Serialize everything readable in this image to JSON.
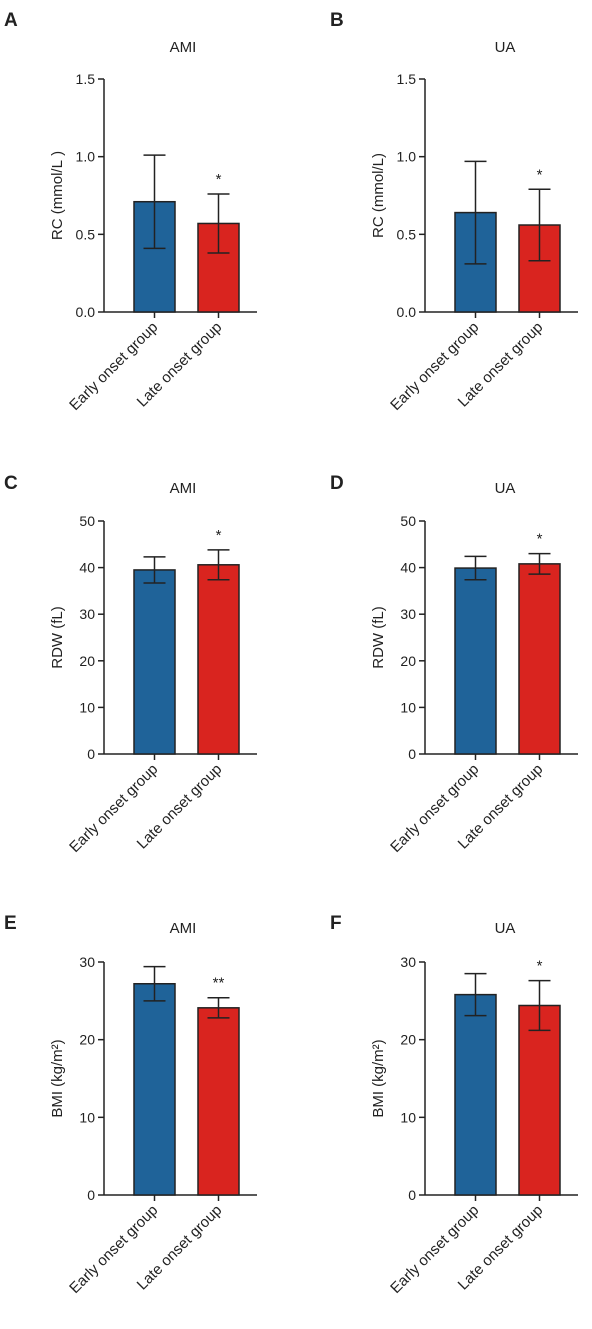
{
  "colors": {
    "early": "#1f6399",
    "late": "#d9241f",
    "axis": "#222222"
  },
  "chart_data": [
    {
      "letter": "A",
      "type": "bar",
      "title": "AMI",
      "ylabel": "RC (mmol/L )",
      "categories": [
        "Early onset group",
        "Late onset group"
      ],
      "values": [
        0.71,
        0.57
      ],
      "errors": [
        0.3,
        0.19
      ],
      "ylim": [
        0,
        1.5
      ],
      "yticks": [
        "0.0",
        "0.5",
        "1.0",
        "1.5"
      ],
      "yticks_values": [
        0,
        0.5,
        1.0,
        1.5
      ],
      "significance": [
        "",
        "*"
      ],
      "grid": false
    },
    {
      "letter": "B",
      "type": "bar",
      "title": "UA",
      "ylabel": "RC (mmol/L)",
      "categories": [
        "Early onset group",
        "Late onset group"
      ],
      "values": [
        0.64,
        0.56
      ],
      "errors": [
        0.33,
        0.23
      ],
      "ylim": [
        0,
        1.5
      ],
      "yticks": [
        "0.0",
        "0.5",
        "1.0",
        "1.5"
      ],
      "yticks_values": [
        0,
        0.5,
        1.0,
        1.5
      ],
      "significance": [
        "",
        "*"
      ],
      "grid": false
    },
    {
      "letter": "C",
      "type": "bar",
      "title": "AMI",
      "ylabel": "RDW (fL)",
      "categories": [
        "Early onset group",
        "Late onset group"
      ],
      "values": [
        39.5,
        40.6
      ],
      "errors": [
        2.8,
        3.2
      ],
      "ylim": [
        0,
        50
      ],
      "yticks": [
        "0",
        "10",
        "20",
        "30",
        "40",
        "50"
      ],
      "yticks_values": [
        0,
        10,
        20,
        30,
        40,
        50
      ],
      "significance": [
        "",
        "*"
      ],
      "grid": false
    },
    {
      "letter": "D",
      "type": "bar",
      "title": "UA",
      "ylabel": "RDW (fL)",
      "categories": [
        "Early onset group",
        "Late onset group"
      ],
      "values": [
        39.9,
        40.8
      ],
      "errors": [
        2.5,
        2.2
      ],
      "ylim": [
        0,
        50
      ],
      "yticks": [
        "0",
        "10",
        "20",
        "30",
        "40",
        "50"
      ],
      "yticks_values": [
        0,
        10,
        20,
        30,
        40,
        50
      ],
      "significance": [
        "",
        "*"
      ],
      "grid": false
    },
    {
      "letter": "E",
      "type": "bar",
      "title": "AMI",
      "ylabel": "BMI (kg/m²)",
      "categories": [
        "Early onset group",
        "Late onset group"
      ],
      "values": [
        27.2,
        24.1
      ],
      "errors": [
        2.2,
        1.3
      ],
      "ylim": [
        0,
        30
      ],
      "yticks": [
        "0",
        "10",
        "20",
        "30"
      ],
      "yticks_values": [
        0,
        10,
        20,
        30
      ],
      "significance": [
        "",
        "**"
      ],
      "grid": false
    },
    {
      "letter": "F",
      "type": "bar",
      "title": "UA",
      "ylabel": "BMI (kg/m²)",
      "categories": [
        "Early onset group",
        "Late onset group"
      ],
      "values": [
        25.8,
        24.4
      ],
      "errors": [
        2.7,
        3.2
      ],
      "ylim": [
        0,
        30
      ],
      "yticks": [
        "0",
        "10",
        "20",
        "30"
      ],
      "yticks_values": [
        0,
        10,
        20,
        30
      ],
      "significance": [
        "",
        "*"
      ],
      "grid": false
    }
  ]
}
